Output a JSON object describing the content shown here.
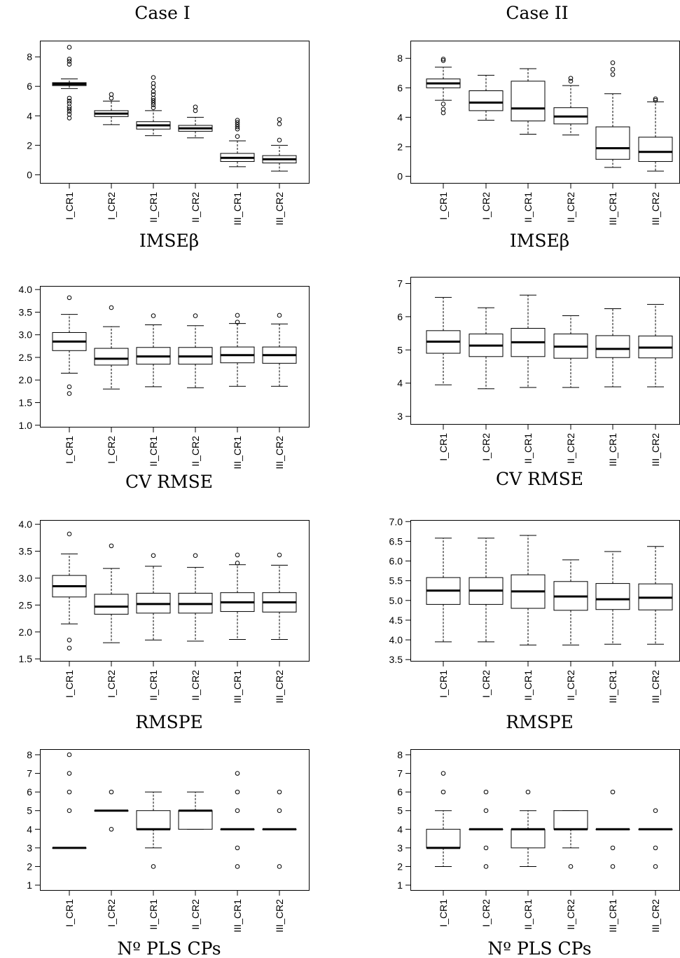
{
  "columns": [
    "Case I",
    "Case II"
  ],
  "chart_data": [
    {
      "type": "box",
      "case": "Case I",
      "title": "IMSEβ",
      "categories": [
        "I_CR1",
        "I_CR2",
        "II_CR1",
        "II_CR2",
        "III_CR1",
        "III_CR2"
      ],
      "yticks": [
        0,
        2,
        4,
        6,
        8
      ],
      "ylim": [
        -0.6,
        9.1
      ],
      "boxes": [
        {
          "lw": 5.85,
          "q1": 6.05,
          "med": 6.15,
          "q3": 6.25,
          "uw": 6.5,
          "out": [
            3.85,
            4.1,
            4.3,
            4.45,
            4.6,
            4.85,
            5.0,
            5.2,
            7.5,
            7.7,
            7.85,
            8.65
          ]
        },
        {
          "lw": 3.4,
          "q1": 3.95,
          "med": 4.15,
          "q3": 4.35,
          "uw": 5.0,
          "out": [
            5.2,
            5.45
          ]
        },
        {
          "lw": 2.65,
          "q1": 3.1,
          "med": 3.35,
          "q3": 3.6,
          "uw": 4.35,
          "out": [
            4.55,
            4.75,
            4.9,
            5.05,
            5.2,
            5.45,
            5.65,
            5.95,
            6.2,
            6.6
          ]
        },
        {
          "lw": 2.5,
          "q1": 2.95,
          "med": 3.15,
          "q3": 3.35,
          "uw": 3.9,
          "out": [
            4.35,
            4.6
          ]
        },
        {
          "lw": 0.55,
          "q1": 0.9,
          "med": 1.15,
          "q3": 1.45,
          "uw": 2.3,
          "out": [
            2.6,
            3.1,
            3.25,
            3.4,
            3.55,
            3.7
          ]
        },
        {
          "lw": 0.25,
          "q1": 0.8,
          "med": 1.05,
          "q3": 1.3,
          "uw": 2.0,
          "out": [
            2.35,
            3.45,
            3.75
          ]
        }
      ]
    },
    {
      "type": "box",
      "case": "Case II",
      "title": "IMSEβ",
      "categories": [
        "I_CR1",
        "I_CR2",
        "II_CR1",
        "II_CR2",
        "III_CR1",
        "III_CR2"
      ],
      "yticks": [
        0,
        2,
        4,
        6,
        8
      ],
      "ylim": [
        -0.5,
        9.2
      ],
      "boxes": [
        {
          "lw": 5.15,
          "q1": 6.0,
          "med": 6.3,
          "q3": 6.6,
          "uw": 7.4,
          "out": [
            4.3,
            4.55,
            4.9,
            7.85,
            7.95
          ]
        },
        {
          "lw": 3.8,
          "q1": 4.45,
          "med": 5.0,
          "q3": 5.8,
          "uw": 6.85,
          "out": []
        },
        {
          "lw": 2.85,
          "q1": 3.75,
          "med": 4.6,
          "q3": 6.45,
          "uw": 7.3,
          "out": []
        },
        {
          "lw": 2.8,
          "q1": 3.55,
          "med": 4.05,
          "q3": 4.65,
          "uw": 6.15,
          "out": [
            6.45,
            6.65
          ]
        },
        {
          "lw": 0.6,
          "q1": 1.15,
          "med": 1.9,
          "q3": 3.35,
          "uw": 5.6,
          "out": [
            6.9,
            7.25,
            7.7
          ]
        },
        {
          "lw": 0.35,
          "q1": 1.0,
          "med": 1.65,
          "q3": 2.65,
          "uw": 5.05,
          "out": [
            5.15,
            5.25
          ]
        }
      ]
    },
    {
      "type": "box",
      "case": "Case I",
      "title": "CV RMSE",
      "categories": [
        "I_CR1",
        "I_CR2",
        "II_CR1",
        "II_CR2",
        "III_CR1",
        "III_CR2"
      ],
      "yticks": [
        "1.0",
        "1.5",
        "2.0",
        "2.5",
        "3.0",
        "3.5",
        "4.0"
      ],
      "ylim": [
        0.95,
        4.08
      ],
      "boxes": [
        {
          "lw": 2.15,
          "q1": 2.65,
          "med": 2.85,
          "q3": 3.05,
          "uw": 3.45,
          "out": [
            1.7,
            1.85,
            3.82
          ]
        },
        {
          "lw": 1.8,
          "q1": 2.33,
          "med": 2.47,
          "q3": 2.7,
          "uw": 3.18,
          "out": [
            3.6
          ]
        },
        {
          "lw": 1.85,
          "q1": 2.35,
          "med": 2.52,
          "q3": 2.72,
          "uw": 3.22,
          "out": [
            3.42
          ]
        },
        {
          "lw": 1.83,
          "q1": 2.35,
          "med": 2.52,
          "q3": 2.72,
          "uw": 3.2,
          "out": [
            3.42
          ]
        },
        {
          "lw": 1.86,
          "q1": 2.38,
          "med": 2.55,
          "q3": 2.73,
          "uw": 3.25,
          "out": [
            3.28,
            3.43
          ]
        },
        {
          "lw": 1.86,
          "q1": 2.37,
          "med": 2.55,
          "q3": 2.73,
          "uw": 3.24,
          "out": [
            3.43
          ]
        }
      ]
    },
    {
      "type": "box",
      "case": "Case II",
      "title": "CV RMSE",
      "categories": [
        "I_CR1",
        "I_CR2",
        "II_CR1",
        "II_CR2",
        "III_CR1",
        "III_CR2"
      ],
      "yticks": [
        3,
        4,
        5,
        6,
        7
      ],
      "ylim": [
        2.75,
        7.2
      ],
      "boxes": [
        {
          "lw": 3.95,
          "q1": 4.9,
          "med": 5.25,
          "q3": 5.58,
          "uw": 6.58,
          "out": []
        },
        {
          "lw": 3.83,
          "q1": 4.8,
          "med": 5.13,
          "q3": 5.48,
          "uw": 6.27,
          "out": []
        },
        {
          "lw": 3.87,
          "q1": 4.8,
          "med": 5.23,
          "q3": 5.65,
          "uw": 6.65,
          "out": []
        },
        {
          "lw": 3.87,
          "q1": 4.75,
          "med": 5.1,
          "q3": 5.48,
          "uw": 6.03,
          "out": []
        },
        {
          "lw": 3.89,
          "q1": 4.77,
          "med": 5.03,
          "q3": 5.43,
          "uw": 6.24,
          "out": []
        },
        {
          "lw": 3.89,
          "q1": 4.76,
          "med": 5.07,
          "q3": 5.42,
          "uw": 6.37,
          "out": []
        }
      ]
    },
    {
      "type": "box",
      "case": "Case I",
      "title": "RMSPE",
      "categories": [
        "I_CR1",
        "I_CR2",
        "II_CR1",
        "II_CR2",
        "III_CR1",
        "III_CR2"
      ],
      "yticks": [
        "1.5",
        "2.0",
        "2.5",
        "3.0",
        "3.5",
        "4.0"
      ],
      "ylim": [
        1.45,
        4.08
      ],
      "boxes": [
        {
          "lw": 2.15,
          "q1": 2.65,
          "med": 2.85,
          "q3": 3.05,
          "uw": 3.45,
          "out": [
            1.7,
            1.85,
            3.82
          ]
        },
        {
          "lw": 1.8,
          "q1": 2.33,
          "med": 2.47,
          "q3": 2.7,
          "uw": 3.18,
          "out": [
            3.6
          ]
        },
        {
          "lw": 1.85,
          "q1": 2.35,
          "med": 2.52,
          "q3": 2.72,
          "uw": 3.22,
          "out": [
            3.42
          ]
        },
        {
          "lw": 1.83,
          "q1": 2.35,
          "med": 2.52,
          "q3": 2.72,
          "uw": 3.2,
          "out": [
            3.42
          ]
        },
        {
          "lw": 1.86,
          "q1": 2.38,
          "med": 2.55,
          "q3": 2.73,
          "uw": 3.25,
          "out": [
            3.28,
            3.43
          ]
        },
        {
          "lw": 1.86,
          "q1": 2.37,
          "med": 2.55,
          "q3": 2.73,
          "uw": 3.24,
          "out": [
            3.43
          ]
        }
      ]
    },
    {
      "type": "box",
      "case": "Case II",
      "title": "RMSPE",
      "categories": [
        "I_CR1",
        "I_CR2",
        "II_CR1",
        "II_CR2",
        "III_CR1",
        "III_CR2"
      ],
      "yticks": [
        "3.5",
        "4.0",
        "4.5",
        "5.0",
        "5.5",
        "6.0",
        "6.5",
        "7.0"
      ],
      "ylim": [
        3.45,
        7.04
      ],
      "boxes": [
        {
          "lw": 3.95,
          "q1": 4.9,
          "med": 5.25,
          "q3": 5.58,
          "uw": 6.58,
          "out": []
        },
        {
          "lw": 3.95,
          "q1": 4.9,
          "med": 5.25,
          "q3": 5.58,
          "uw": 6.58,
          "out": []
        },
        {
          "lw": 3.87,
          "q1": 4.8,
          "med": 5.23,
          "q3": 5.65,
          "uw": 6.65,
          "out": []
        },
        {
          "lw": 3.87,
          "q1": 4.75,
          "med": 5.1,
          "q3": 5.48,
          "uw": 6.03,
          "out": []
        },
        {
          "lw": 3.89,
          "q1": 4.77,
          "med": 5.03,
          "q3": 5.43,
          "uw": 6.24,
          "out": []
        },
        {
          "lw": 3.89,
          "q1": 4.76,
          "med": 5.07,
          "q3": 5.42,
          "uw": 6.37,
          "out": []
        }
      ]
    },
    {
      "type": "box",
      "case": "Case I",
      "title": "Nº PLS CPs",
      "categories": [
        "I_CR1",
        "I_CR2",
        "II_CR1",
        "II_CR2",
        "III_CR1",
        "III_CR2"
      ],
      "yticks": [
        1,
        2,
        3,
        4,
        5,
        6,
        7,
        8
      ],
      "ylim": [
        0.7,
        8.3
      ],
      "boxes": [
        {
          "lw": 3,
          "q1": 3,
          "med": 3,
          "q3": 3,
          "uw": 3,
          "out": [
            5,
            6,
            7,
            8
          ]
        },
        {
          "lw": 5,
          "q1": 5,
          "med": 5,
          "q3": 5,
          "uw": 5,
          "out": [
            4,
            6
          ]
        },
        {
          "lw": 3,
          "q1": 4,
          "med": 4,
          "q3": 5,
          "uw": 6,
          "out": [
            2
          ]
        },
        {
          "lw": 4,
          "q1": 4,
          "med": 5,
          "q3": 5,
          "uw": 6,
          "out": []
        },
        {
          "lw": 4,
          "q1": 4,
          "med": 4,
          "q3": 4,
          "uw": 4,
          "out": [
            2,
            3,
            5,
            6,
            7
          ]
        },
        {
          "lw": 4,
          "q1": 4,
          "med": 4,
          "q3": 4,
          "uw": 4,
          "out": [
            2,
            5,
            6
          ]
        }
      ]
    },
    {
      "type": "box",
      "case": "Case II",
      "title": "Nº PLS CPs",
      "categories": [
        "I_CR1",
        "I_CR2",
        "II_CR1",
        "II_CR2",
        "III_CR1",
        "III_CR2"
      ],
      "yticks": [
        1,
        2,
        3,
        4,
        5,
        6,
        7,
        8
      ],
      "ylim": [
        0.7,
        8.3
      ],
      "boxes": [
        {
          "lw": 2,
          "q1": 3,
          "med": 3,
          "q3": 4,
          "uw": 5,
          "out": [
            6,
            7
          ]
        },
        {
          "lw": 4,
          "q1": 4,
          "med": 4,
          "q3": 4,
          "uw": 4,
          "out": [
            2,
            3,
            5,
            6
          ]
        },
        {
          "lw": 2,
          "q1": 3,
          "med": 4,
          "q3": 4,
          "uw": 5,
          "out": [
            6
          ]
        },
        {
          "lw": 3,
          "q1": 4,
          "med": 4,
          "q3": 5,
          "uw": 5,
          "out": [
            2
          ]
        },
        {
          "lw": 4,
          "q1": 4,
          "med": 4,
          "q3": 4,
          "uw": 4,
          "out": [
            2,
            3,
            6
          ]
        },
        {
          "lw": 4,
          "q1": 4,
          "med": 4,
          "q3": 4,
          "uw": 4,
          "out": [
            2,
            3,
            5
          ]
        }
      ]
    }
  ]
}
